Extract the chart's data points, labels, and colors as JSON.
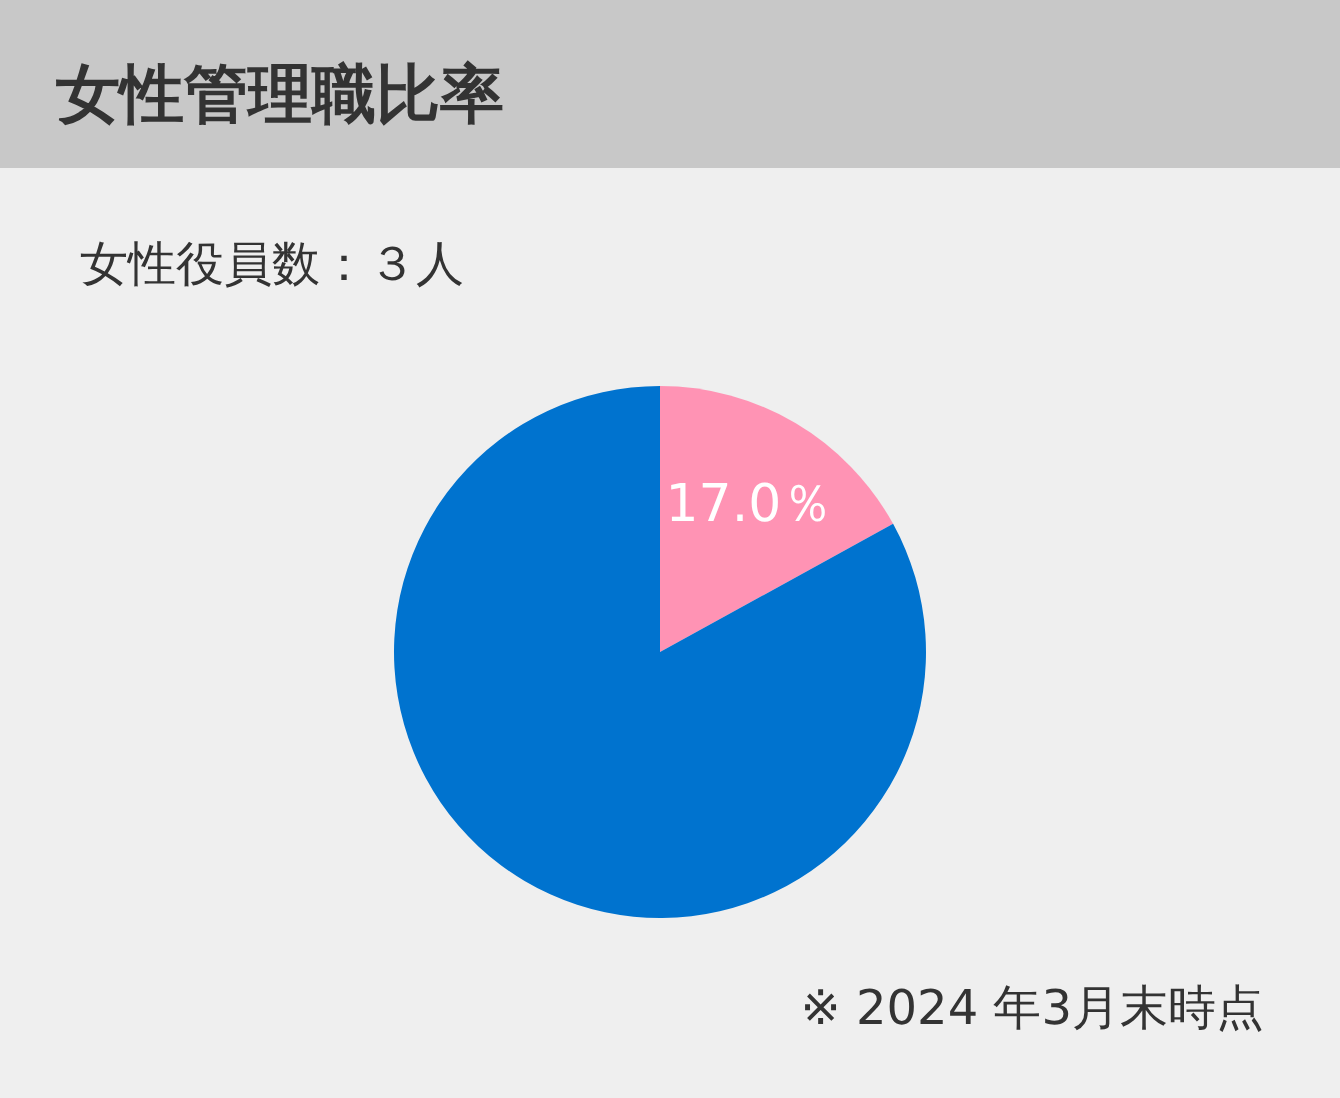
{
  "chart_data": {
    "type": "pie",
    "title": "女性管理職比率",
    "categories": [
      null,
      null
    ],
    "values": [
      17.0,
      83.0
    ],
    "colors": [
      "#ff93b4",
      "#0073cf"
    ],
    "value_labels": [
      "17.0％",
      null
    ],
    "annotations": [
      "女性役員数：３人",
      "※ 2024 年3月末時点"
    ]
  }
}
